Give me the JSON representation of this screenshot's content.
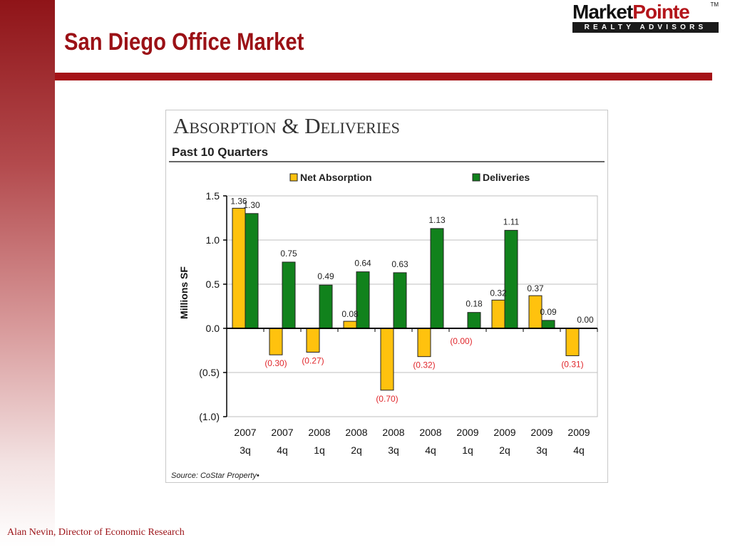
{
  "slide": {
    "title": "San Diego Office Market",
    "footer": "Alan Nevin, Director of Economic Research"
  },
  "logo": {
    "part1": "Market",
    "part2": "Pointe",
    "tm": "TM",
    "tagline": "REALTY ADVISORS"
  },
  "colors": {
    "brand_red": "#a51217",
    "net_absorption": "#ffc20e",
    "deliveries": "#11821c",
    "negative_label": "#e0262b"
  },
  "chart_data": {
    "type": "bar",
    "title": "Absorption & Deliveries",
    "subtitle": "Past 10 Quarters",
    "ylabel": "Millions SF",
    "xlabel": "",
    "ylim": [
      -1.0,
      1.5
    ],
    "yticks": [
      1.5,
      1.0,
      0.5,
      0.0,
      -0.5,
      -1.0
    ],
    "ytick_labels": [
      "1.5",
      "1.0",
      "0.5",
      "0.0",
      "(0.5)",
      "(1.0)"
    ],
    "grid": true,
    "legend_position": "top",
    "categories": [
      [
        "2007",
        "3q"
      ],
      [
        "2007",
        "4q"
      ],
      [
        "2008",
        "1q"
      ],
      [
        "2008",
        "2q"
      ],
      [
        "2008",
        "3q"
      ],
      [
        "2008",
        "4q"
      ],
      [
        "2009",
        "1q"
      ],
      [
        "2009",
        "2q"
      ],
      [
        "2009",
        "3q"
      ],
      [
        "2009",
        "4q"
      ]
    ],
    "series": [
      {
        "name": "Net Absorption",
        "color": "#ffc20e",
        "values": [
          1.36,
          -0.3,
          -0.27,
          0.08,
          -0.7,
          -0.32,
          -0.0,
          0.32,
          0.37,
          -0.31
        ],
        "labels": [
          "1.36",
          "(0.30)",
          "(0.27)",
          "0.08",
          "(0.70)",
          "(0.32)",
          "(0.00)",
          "0.32",
          "0.37",
          "(0.31)"
        ]
      },
      {
        "name": "Deliveries",
        "color": "#11821c",
        "values": [
          1.3,
          0.75,
          0.49,
          0.64,
          0.63,
          1.13,
          0.18,
          1.11,
          0.09,
          0.0
        ],
        "labels": [
          "1.30",
          "0.75",
          "0.49",
          "0.64",
          "0.63",
          "1.13",
          "0.18",
          "1.11",
          "0.09",
          "0.00"
        ]
      }
    ],
    "source": "Source: CoStar Property•"
  }
}
